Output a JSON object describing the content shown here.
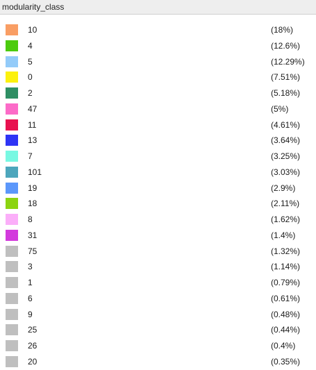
{
  "panel": {
    "title": "modularity_class"
  },
  "classes": [
    {
      "label": "10",
      "percent": "(18%)",
      "color": "#F99E64"
    },
    {
      "label": "4",
      "percent": "(12.6%)",
      "color": "#4CCB0E"
    },
    {
      "label": "5",
      "percent": "(12.29%)",
      "color": "#93CBF9"
    },
    {
      "label": "0",
      "percent": "(7.51%)",
      "color": "#FCF10E"
    },
    {
      "label": "2",
      "percent": "(5.18%)",
      "color": "#2F8F64"
    },
    {
      "label": "47",
      "percent": "(5%)",
      "color": "#FC6BC8"
    },
    {
      "label": "11",
      "percent": "(4.61%)",
      "color": "#E8124F"
    },
    {
      "label": "13",
      "percent": "(3.64%)",
      "color": "#2E34F5"
    },
    {
      "label": "7",
      "percent": "(3.25%)",
      "color": "#78F8E2"
    },
    {
      "label": "101",
      "percent": "(3.03%)",
      "color": "#4DA6BC"
    },
    {
      "label": "19",
      "percent": "(2.9%)",
      "color": "#5B97FB"
    },
    {
      "label": "18",
      "percent": "(2.11%)",
      "color": "#8CD411"
    },
    {
      "label": "8",
      "percent": "(1.62%)",
      "color": "#FBAEF9"
    },
    {
      "label": "31",
      "percent": "(1.4%)",
      "color": "#D33ADD"
    },
    {
      "label": "75",
      "percent": "(1.32%)",
      "color": "#BFBFBF"
    },
    {
      "label": "3",
      "percent": "(1.14%)",
      "color": "#BFBFBF"
    },
    {
      "label": "1",
      "percent": "(0.79%)",
      "color": "#BFBFBF"
    },
    {
      "label": "6",
      "percent": "(0.61%)",
      "color": "#BFBFBF"
    },
    {
      "label": "9",
      "percent": "(0.48%)",
      "color": "#BFBFBF"
    },
    {
      "label": "25",
      "percent": "(0.44%)",
      "color": "#BFBFBF"
    },
    {
      "label": "26",
      "percent": "(0.4%)",
      "color": "#BFBFBF"
    },
    {
      "label": "20",
      "percent": "(0.35%)",
      "color": "#BFBFBF"
    }
  ]
}
